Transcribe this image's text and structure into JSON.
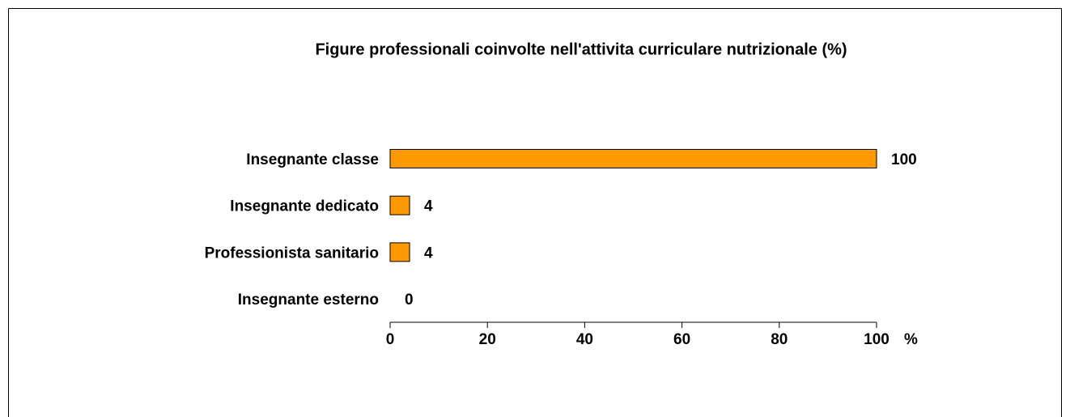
{
  "chart_data": {
    "type": "bar",
    "orientation": "horizontal",
    "title": "Figure professionali coinvolte nell'attivita curriculare nutrizionale (%)",
    "categories": [
      "Insegnante classe",
      "Insegnante dedicato",
      "Professionista sanitario",
      "Insegnante esterno"
    ],
    "values": [
      100,
      4,
      4,
      0
    ],
    "color": "#ff9900",
    "xlabel": "%",
    "xlim": [
      0,
      100
    ],
    "xticks": [
      0,
      20,
      40,
      60,
      80,
      100
    ],
    "grid": false
  }
}
